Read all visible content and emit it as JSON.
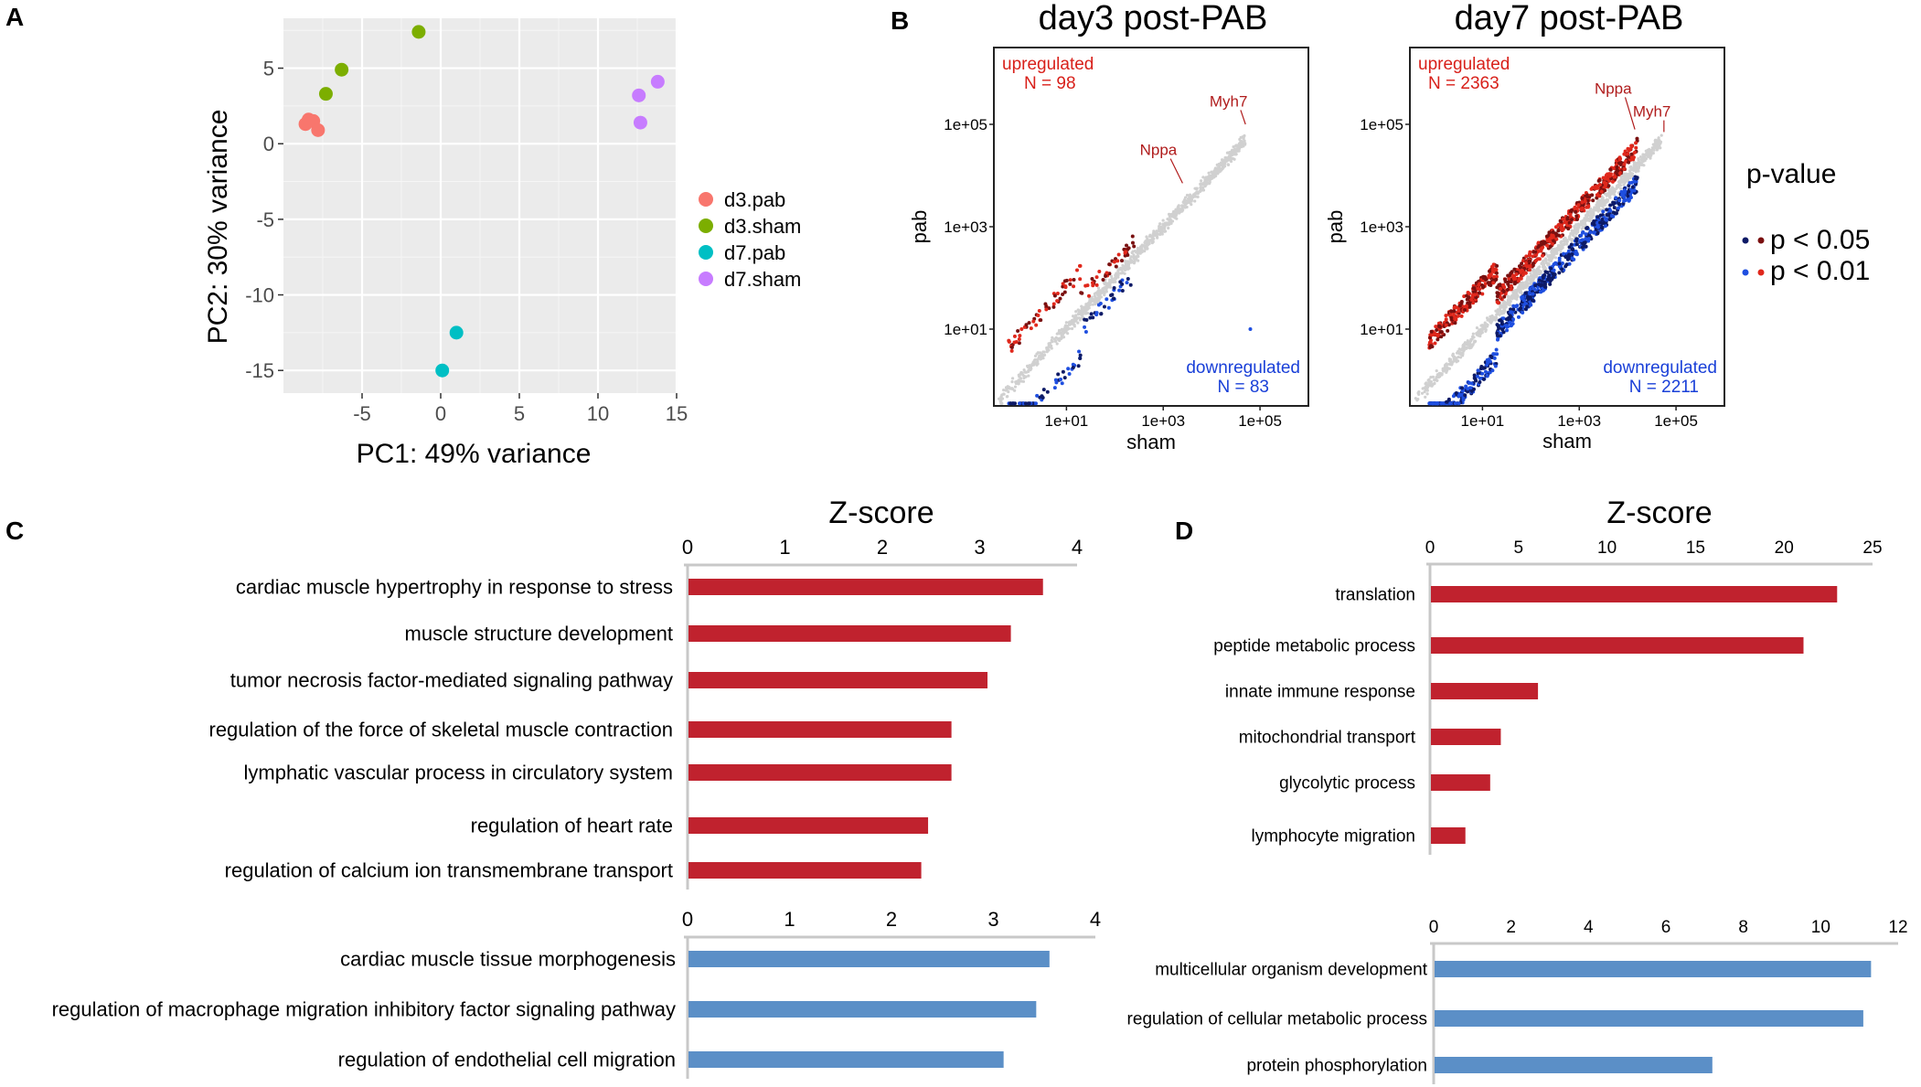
{
  "panels": {
    "a": "A",
    "b": "B",
    "c": "C",
    "d": "D"
  },
  "chart_data": [
    {
      "panel": "A",
      "type": "scatter",
      "xlabel": "PC1: 49% variance",
      "ylabel": "PC2: 30% variance",
      "xlim": [
        -10,
        15
      ],
      "ylim": [
        -16.5,
        8.3
      ],
      "xticks": [
        -5,
        0,
        5,
        10,
        15
      ],
      "yticks": [
        5,
        0,
        -5,
        -10,
        -15
      ],
      "grid": true,
      "legend_position": "right",
      "series": [
        {
          "name": "d3.pab",
          "color": "#F8766D",
          "points": [
            [
              -8.6,
              1.3
            ],
            [
              -8.4,
              1.6
            ],
            [
              -8.1,
              1.5
            ],
            [
              -7.8,
              0.9
            ]
          ]
        },
        {
          "name": "d3.sham",
          "color": "#7CAE00",
          "points": [
            [
              -7.3,
              3.3
            ],
            [
              -6.3,
              4.9
            ],
            [
              -1.4,
              7.4
            ]
          ]
        },
        {
          "name": "d7.pab",
          "color": "#00BFC4",
          "points": [
            [
              0.1,
              -15.0
            ],
            [
              1.0,
              -12.5
            ]
          ]
        },
        {
          "name": "d7.sham",
          "color": "#C77CFF",
          "points": [
            [
              12.6,
              3.2
            ],
            [
              12.7,
              1.4
            ],
            [
              13.8,
              4.1
            ]
          ]
        }
      ]
    },
    {
      "panel": "B-left",
      "type": "scatter",
      "title": "day3 post-PAB",
      "xlabel": "sham",
      "ylabel": "pab",
      "scale": "log10",
      "xlim_log10": [
        -0.5,
        6
      ],
      "ylim_log10": [
        -0.5,
        6.5
      ],
      "xticks": [
        "1e+01",
        "1e+03",
        "1e+05"
      ],
      "yticks": [
        "1e+05",
        "1e+03",
        "1e+01"
      ],
      "up_label": "upregulated",
      "up_n": "N = 98",
      "down_label": "downregulated",
      "down_n": "N = 83",
      "gene_labels": [
        {
          "name": "Myh7",
          "x": 4.7,
          "y": 5.0,
          "tx": 4.35,
          "ty": 5.35
        },
        {
          "name": "Nppa",
          "x": 3.4,
          "y": 3.85,
          "tx": 2.9,
          "ty": 4.4
        }
      ],
      "outlier_down": [
        [
          4.8,
          1.0
        ]
      ],
      "n_sig_up": 98,
      "n_sig_down": 83
    },
    {
      "panel": "B-right",
      "type": "scatter",
      "title": "day7 post-PAB",
      "xlabel": "sham",
      "ylabel": "pab",
      "scale": "log10",
      "xlim_log10": [
        -0.5,
        6
      ],
      "ylim_log10": [
        -0.5,
        6.5
      ],
      "xticks": [
        "1e+01",
        "1e+03",
        "1e+05"
      ],
      "yticks": [
        "1e+05",
        "1e+03",
        "1e+01"
      ],
      "up_label": "upregulated",
      "up_n": "N = 2363",
      "down_label": "downregulated",
      "down_n": "N = 2211",
      "gene_labels": [
        {
          "name": "Nppa",
          "x": 4.15,
          "y": 4.9,
          "tx": 3.7,
          "ty": 5.6
        },
        {
          "name": "Myh7",
          "x": 4.75,
          "y": 4.85,
          "tx": 4.5,
          "ty": 5.15
        }
      ],
      "n_sig_up": 2363,
      "n_sig_down": 2211
    },
    {
      "panel": "B-legend",
      "type": "legend",
      "title": "p-value",
      "entries": [
        {
          "label": "p < 0.05",
          "colors": [
            "#0d1a66",
            "#7a1010"
          ]
        },
        {
          "label": "p < 0.01",
          "colors": [
            "#1f4fe0",
            "#e0281c"
          ]
        }
      ]
    },
    {
      "panel": "C-up",
      "type": "bar",
      "orientation": "horizontal",
      "title": "Z-score",
      "color": "#C0222E",
      "xlim": [
        0,
        4
      ],
      "xticks": [
        0,
        1,
        2,
        3,
        4
      ],
      "categories": [
        "cardiac muscle hypertrophy in response to stress",
        "muscle structure development",
        "tumor necrosis factor-mediated signaling pathway",
        "regulation of the force of skeletal muscle contraction",
        "lymphatic vascular process in circulatory system",
        "regulation of heart rate",
        "regulation of calcium ion transmembrane transport"
      ],
      "values": [
        3.65,
        3.32,
        3.08,
        2.71,
        2.71,
        2.47,
        2.4
      ]
    },
    {
      "panel": "C-down",
      "type": "bar",
      "orientation": "horizontal",
      "color": "#5B8FC7",
      "xlim": [
        0,
        4
      ],
      "xticks": [
        0,
        1,
        2,
        3,
        4
      ],
      "categories": [
        "cardiac muscle tissue morphogenesis",
        "regulation of macrophage migration inhibitory factor signaling pathway",
        "regulation of endothelial cell migration"
      ],
      "values": [
        3.55,
        3.42,
        3.1
      ]
    },
    {
      "panel": "D-up",
      "type": "bar",
      "orientation": "horizontal",
      "title": "Z-score",
      "color": "#C0222E",
      "xlim": [
        0,
        25
      ],
      "xticks": [
        0,
        5,
        10,
        15,
        20,
        25
      ],
      "categories": [
        "translation",
        "peptide metabolic process",
        "innate immune response",
        "mitochondrial transport",
        "glycolytic process",
        "lymphocyte migration"
      ],
      "values": [
        23.0,
        21.1,
        6.1,
        4.0,
        3.4,
        2.0
      ]
    },
    {
      "panel": "D-down",
      "type": "bar",
      "orientation": "horizontal",
      "color": "#5B8FC7",
      "xlim": [
        0,
        12
      ],
      "xticks": [
        0,
        2,
        4,
        6,
        8,
        10,
        12
      ],
      "categories": [
        "multicellular  organism development",
        "regulation of cellular metabolic process",
        "protein phosphorylation"
      ],
      "values": [
        11.3,
        11.1,
        7.2
      ]
    }
  ]
}
